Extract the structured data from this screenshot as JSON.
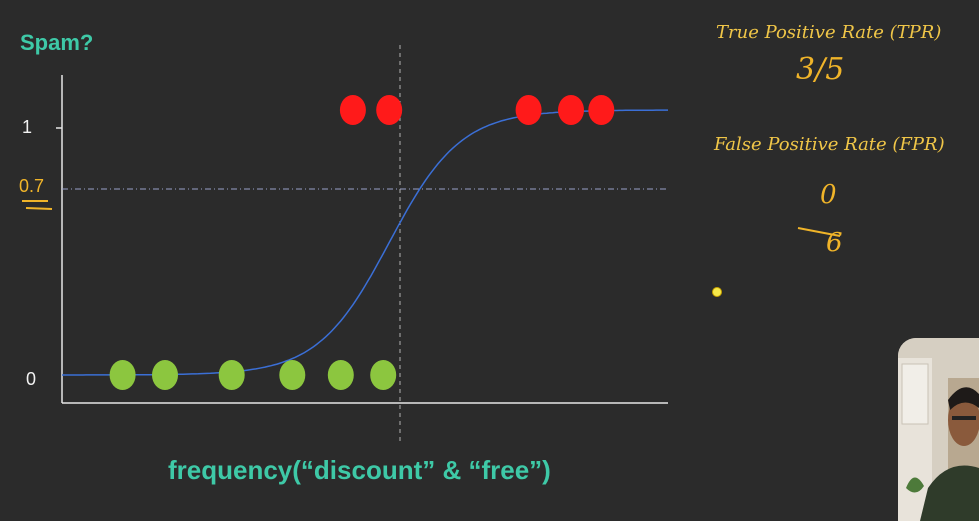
{
  "chart_data": {
    "type": "scatter",
    "title": "Spam?",
    "xlabel": "frequency(“discount” & “free”)",
    "ylabel": "",
    "ylim": [
      0,
      1
    ],
    "yticks": [
      {
        "value": 0,
        "label": "0"
      },
      {
        "value": 0.7,
        "label": "0.7",
        "highlight": true
      },
      {
        "value": 1,
        "label": "1"
      }
    ],
    "threshold": 0.7,
    "series": [
      {
        "class": "spam",
        "color": "#ff1a1a",
        "y": 1,
        "x": [
          4.8,
          5.4,
          7.7,
          8.4,
          8.9
        ]
      },
      {
        "class": "not-spam",
        "color": "#8cc63f",
        "y": 0,
        "x": [
          1.0,
          1.7,
          2.8,
          3.8,
          4.6,
          5.3
        ]
      }
    ],
    "curve": {
      "midpoint": 5.4,
      "steepness": 1.7
    },
    "threshold_x": 5.6,
    "xlim": [
      0,
      10
    ]
  },
  "annotations": {
    "tpr_title": "True Positive Rate (TPR)",
    "tpr_value": "3/5",
    "fpr_title": "False Positive Rate (FPR)",
    "fpr_numerator": "0",
    "fpr_denominator": "6"
  },
  "colors": {
    "background": "#2b2b2b",
    "accent_teal": "#3ec9a7",
    "annotation_yellow": "#f0c648",
    "curve_blue": "#3b6fd6"
  }
}
